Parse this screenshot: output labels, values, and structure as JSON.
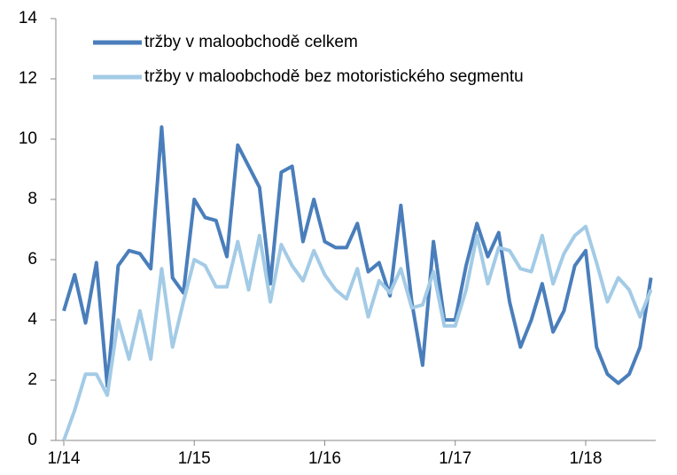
{
  "chart_data": {
    "type": "line",
    "categories": [
      "1/14",
      null,
      null,
      null,
      null,
      null,
      null,
      null,
      null,
      null,
      null,
      null,
      "1/15",
      null,
      null,
      null,
      null,
      null,
      null,
      null,
      null,
      null,
      null,
      null,
      "1/16",
      null,
      null,
      null,
      null,
      null,
      null,
      null,
      null,
      null,
      null,
      null,
      "1/17",
      null,
      null,
      null,
      null,
      null,
      null,
      null,
      null,
      null,
      null,
      null,
      "1/18",
      null,
      null,
      null,
      null,
      null,
      null
    ],
    "series": [
      {
        "name": "tržby v maloobchodě celkem",
        "color": "#4a7ebb",
        "values": [
          4.3,
          5.5,
          3.9,
          5.9,
          1.8,
          5.8,
          6.3,
          6.2,
          5.7,
          10.4,
          5.4,
          4.9,
          8.0,
          7.4,
          7.3,
          6.1,
          9.8,
          9.1,
          8.4,
          5.2,
          8.9,
          9.1,
          6.6,
          8.0,
          6.6,
          6.4,
          6.4,
          7.2,
          5.6,
          5.9,
          4.8,
          7.8,
          4.6,
          2.5,
          6.6,
          4.0,
          4.0,
          5.8,
          7.2,
          6.1,
          6.9,
          4.6,
          3.1,
          4.0,
          5.2,
          3.6,
          4.3,
          5.8,
          6.3,
          3.1,
          2.2,
          1.9,
          2.2,
          3.1,
          5.4
        ]
      },
      {
        "name": "tržby v maloobchodě bez motoristického segmentu",
        "color": "#a3cbe6",
        "values": [
          0,
          1.0,
          2.2,
          2.2,
          1.5,
          4.0,
          2.7,
          4.3,
          2.7,
          5.7,
          3.1,
          4.6,
          6.0,
          5.8,
          5.1,
          5.1,
          6.6,
          5.0,
          6.8,
          4.6,
          6.5,
          5.8,
          5.3,
          6.3,
          5.5,
          5.0,
          4.7,
          5.7,
          4.1,
          5.3,
          4.9,
          5.7,
          4.4,
          4.5,
          5.6,
          3.8,
          3.8,
          5.0,
          6.8,
          5.2,
          6.4,
          6.3,
          5.7,
          5.6,
          6.8,
          5.2,
          6.2,
          6.8,
          7.1,
          5.9,
          4.6,
          5.4,
          5.0,
          4.1,
          5.0
        ]
      }
    ],
    "ylim": [
      0,
      14
    ],
    "yticks": [
      0,
      2,
      4,
      6,
      8,
      10,
      12,
      14
    ],
    "legend": "top-left"
  }
}
